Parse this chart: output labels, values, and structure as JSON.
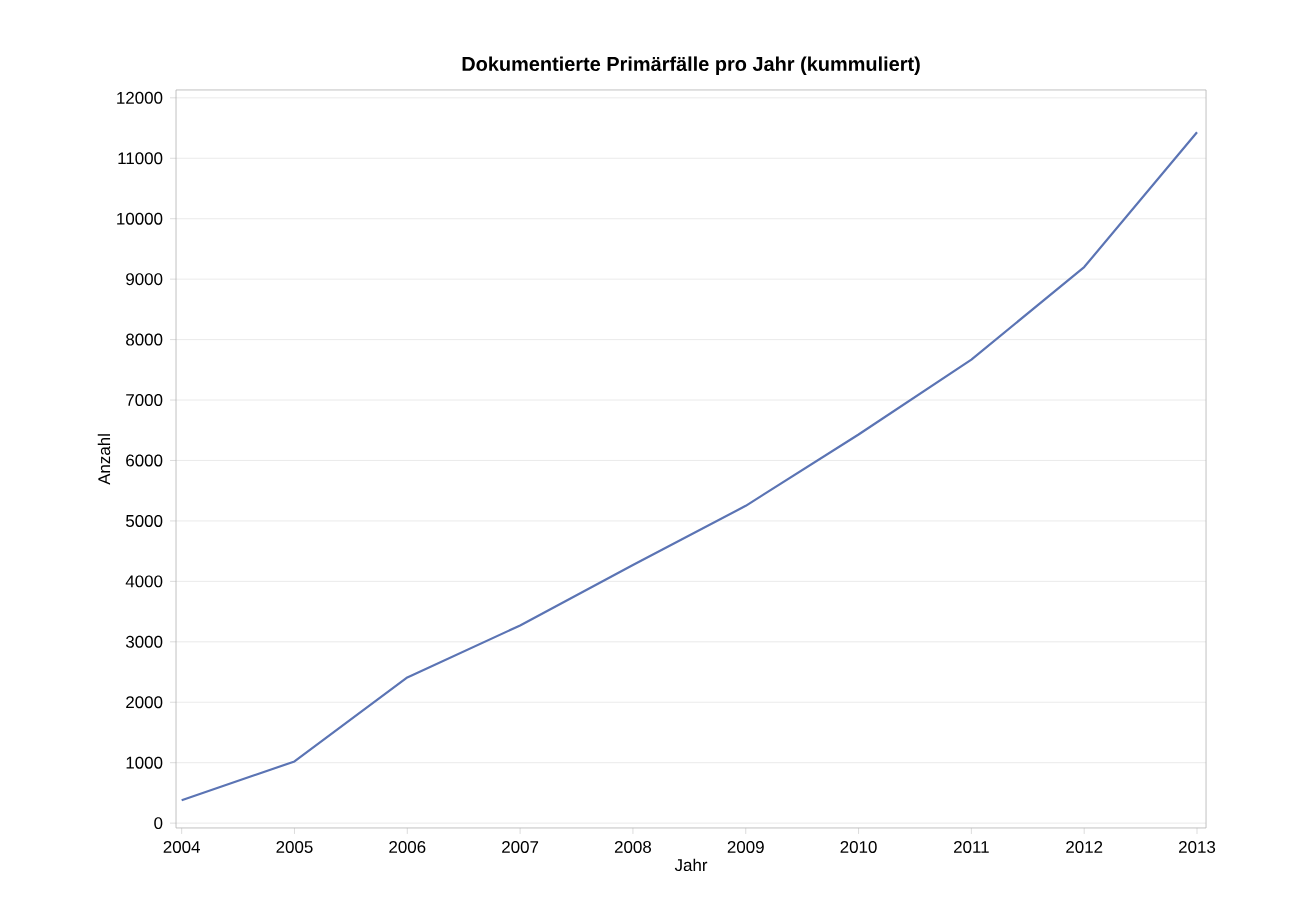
{
  "chart_data": {
    "type": "line",
    "title": "Dokumentierte Primärfälle pro Jahr (kummuliert)",
    "xlabel": "Jahr",
    "ylabel": "Anzahl",
    "x": [
      2004,
      2005,
      2006,
      2007,
      2008,
      2009,
      2010,
      2011,
      2012,
      2013
    ],
    "series": [
      {
        "color": "#5b74b4",
        "values": [
          380,
          1020,
          2410,
          3270,
          4270,
          5250,
          6430,
          7670,
          9200,
          11430
        ]
      }
    ],
    "xlim": [
      2003.95,
      2013.08
    ],
    "ylim": [
      -80,
      12130
    ],
    "xticks": [
      2004,
      2005,
      2006,
      2007,
      2008,
      2009,
      2010,
      2011,
      2012,
      2013
    ],
    "yticks": [
      0,
      1000,
      2000,
      3000,
      4000,
      5000,
      6000,
      7000,
      8000,
      9000,
      10000,
      11000,
      12000
    ],
    "grid": "y"
  }
}
